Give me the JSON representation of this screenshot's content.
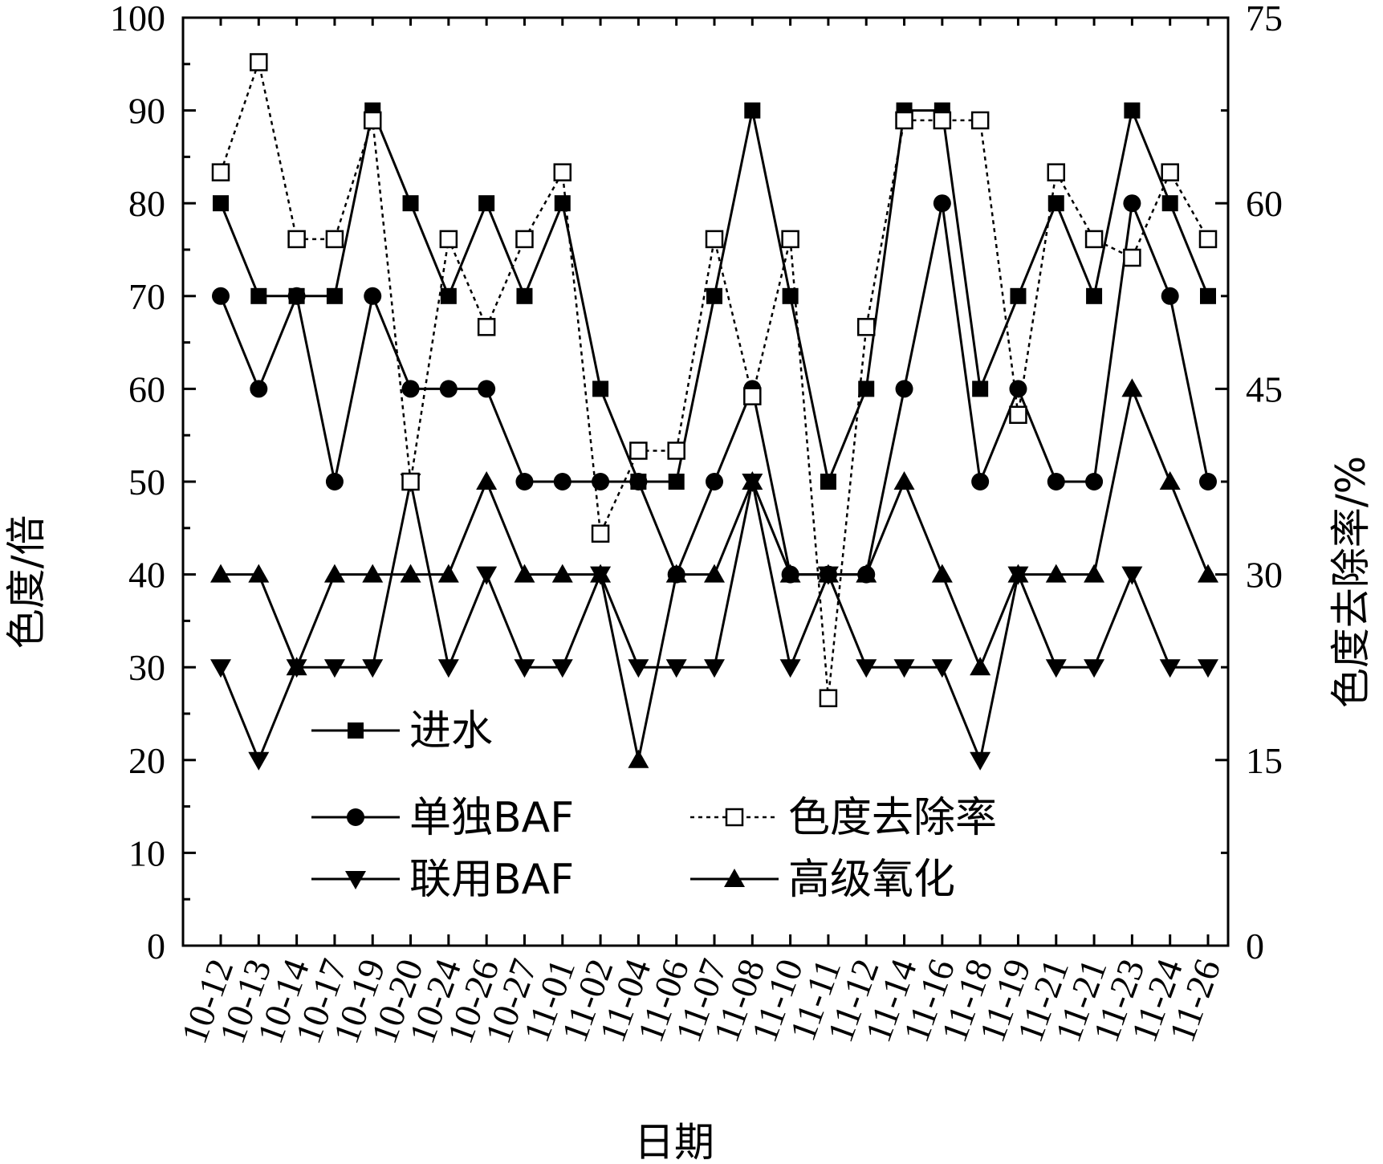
{
  "chart_data": {
    "type": "line",
    "xlabel": "日期",
    "ylabel_left": "色度/倍",
    "ylabel_right": "色度去除率/%",
    "ylim_left": [
      0,
      100
    ],
    "ylim_right": [
      0,
      75
    ],
    "yticks_left": [
      "0",
      "10",
      "20",
      "30",
      "40",
      "50",
      "60",
      "70",
      "80",
      "90",
      "100"
    ],
    "yticks_right": [
      "0",
      "15",
      "30",
      "45",
      "60",
      "75"
    ],
    "grid": false,
    "legend_position": "lower-center",
    "categories": [
      "10-12",
      "10-13",
      "10-14",
      "10-17",
      "10-19",
      "10-20",
      "10-24",
      "10-26",
      "10-27",
      "11-01",
      "11-02",
      "11-04",
      "11-06",
      "11-07",
      "11-08",
      "11-10",
      "11-11",
      "11-12",
      "11-14",
      "11-16",
      "11-18",
      "11-19",
      "11-21",
      "11-21",
      "11-23",
      "11-24",
      "11-26"
    ],
    "series": [
      {
        "name": "进水",
        "axis": "left",
        "marker": "square-filled",
        "line": "solid",
        "values": [
          80,
          70,
          70,
          70,
          90,
          80,
          70,
          80,
          70,
          80,
          60,
          50,
          50,
          70,
          90,
          70,
          50,
          60,
          90,
          90,
          60,
          70,
          80,
          70,
          90,
          80,
          70
        ]
      },
      {
        "name": "单独BAF",
        "axis": "left",
        "marker": "circle-filled",
        "line": "solid",
        "values": [
          70,
          60,
          70,
          50,
          70,
          60,
          60,
          60,
          50,
          50,
          50,
          50,
          40,
          50,
          60,
          40,
          40,
          40,
          60,
          80,
          50,
          60,
          50,
          50,
          80,
          70,
          50
        ]
      },
      {
        "name": "联用BAF",
        "axis": "left",
        "marker": "triangle-down-filled",
        "line": "solid",
        "values": [
          30,
          20,
          30,
          30,
          30,
          50,
          30,
          40,
          30,
          30,
          40,
          30,
          30,
          30,
          50,
          30,
          40,
          30,
          30,
          30,
          20,
          40,
          30,
          30,
          40,
          30,
          30
        ]
      },
      {
        "name": "色度去除率",
        "axis": "right",
        "marker": "square-open",
        "line": "dotted",
        "values": [
          62.5,
          71.4,
          57.1,
          57.1,
          66.7,
          37.5,
          57.1,
          50.0,
          57.1,
          62.5,
          33.3,
          40.0,
          40.0,
          57.1,
          44.4,
          57.1,
          20.0,
          50.0,
          66.7,
          66.7,
          66.7,
          42.9,
          62.5,
          57.1,
          55.6,
          62.5,
          57.1
        ]
      },
      {
        "name": "高级氧化",
        "axis": "left",
        "marker": "triangle-up-filled",
        "line": "solid",
        "values": [
          40,
          40,
          30,
          40,
          40,
          40,
          40,
          50,
          40,
          40,
          40,
          20,
          40,
          40,
          50,
          40,
          40,
          40,
          50,
          40,
          30,
          40,
          40,
          40,
          60,
          50,
          40
        ]
      }
    ]
  }
}
